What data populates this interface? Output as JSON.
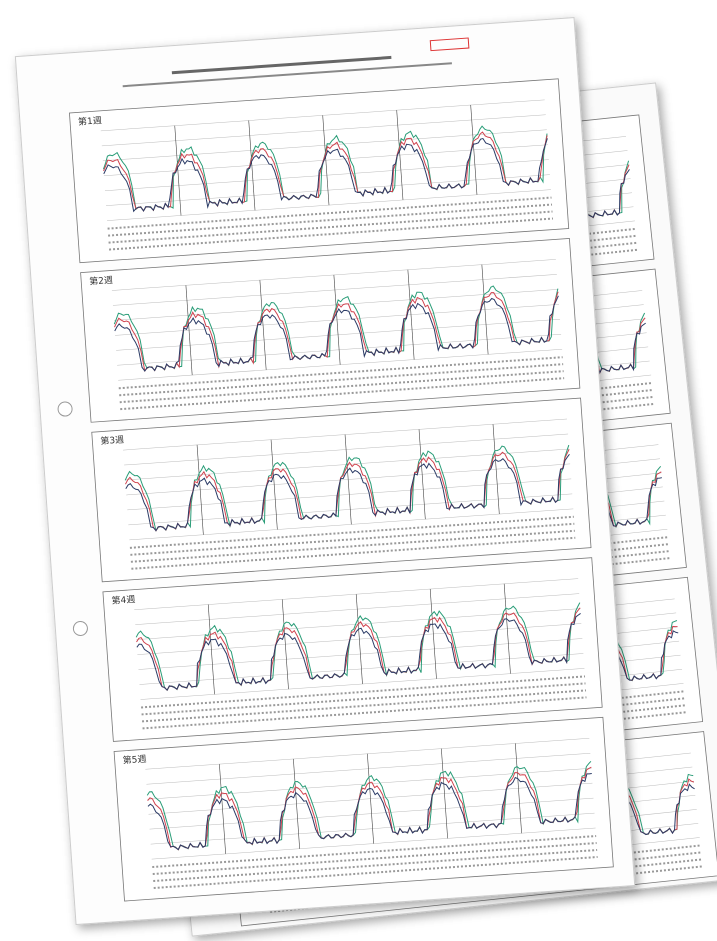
{
  "sheets": [
    {
      "charts": [
        {
          "label": "第1週"
        },
        {
          "label": "第2週"
        },
        {
          "label": "第3週"
        },
        {
          "label": "第4週"
        },
        {
          "label": "第5週"
        }
      ]
    }
  ]
}
